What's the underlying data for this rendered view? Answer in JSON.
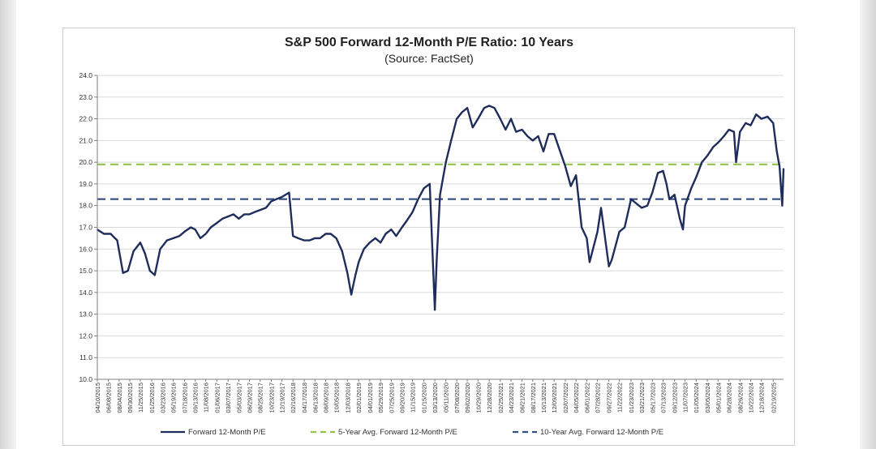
{
  "chart_data": {
    "type": "line",
    "title": "S&P 500 Forward 12-Month P/E Ratio: 10 Years",
    "subtitle": "(Source: FactSet)",
    "xlabel": "",
    "ylabel": "",
    "ylim": [
      10.0,
      24.0
    ],
    "y_ticks": [
      "10.0",
      "11.0",
      "12.0",
      "13.0",
      "14.0",
      "15.0",
      "16.0",
      "17.0",
      "18.0",
      "19.0",
      "20.0",
      "21.0",
      "22.0",
      "23.0",
      "24.0"
    ],
    "x_ticks": [
      "04/10/2015",
      "06/08/2015",
      "08/04/2015",
      "09/30/2015",
      "11/25/2015",
      "01/25/2016",
      "03/23/2016",
      "05/19/2016",
      "07/18/2016",
      "09/13/2016",
      "11/08/2016",
      "01/06/2017",
      "03/07/2017",
      "05/03/2017",
      "06/29/2017",
      "08/25/2017",
      "10/23/2017",
      "12/19/2017",
      "02/16/2018",
      "04/17/2018",
      "06/13/2018",
      "08/09/2018",
      "10/05/2018",
      "12/03/2018",
      "02/01/2019",
      "04/01/2019",
      "05/29/2019",
      "07/25/2019",
      "09/20/2019",
      "11/15/2019",
      "01/15/2020",
      "03/13/2020",
      "05/11/2020",
      "07/08/2020",
      "09/02/2020",
      "10/29/2020",
      "12/28/2020",
      "02/25/2021",
      "04/23/2021",
      "06/21/2021",
      "08/17/2021",
      "10/13/2021",
      "12/09/2021",
      "02/07/2022",
      "04/05/2022",
      "06/01/2022",
      "07/28/2022",
      "09/27/2022",
      "11/22/2022",
      "01/23/2023",
      "03/21/2023",
      "05/17/2023",
      "07/13/2023",
      "09/12/2023",
      "11/07/2023",
      "01/05/2024",
      "03/05/2024",
      "05/01/2024",
      "06/28/2024",
      "08/26/2024",
      "10/22/2024",
      "12/18/2024",
      "02/19/2025"
    ],
    "grid": true,
    "legend_position": "bottom",
    "series": [
      {
        "name": "Forward 12-Month P/E",
        "style": "solid",
        "color": "#1f2d5c",
        "x": [
          "04/10/2015",
          "05/15/2015",
          "06/20/2015",
          "07/25/2015",
          "08/25/2015",
          "09/20/2015",
          "10/20/2015",
          "11/25/2015",
          "12/20/2015",
          "01/15/2016",
          "02/10/2016",
          "03/10/2016",
          "04/15/2016",
          "05/19/2016",
          "06/20/2016",
          "07/18/2016",
          "08/20/2016",
          "09/13/2016",
          "10/10/2016",
          "11/08/2016",
          "12/05/2016",
          "01/06/2017",
          "02/05/2017",
          "03/07/2017",
          "04/05/2017",
          "05/03/2017",
          "06/01/2017",
          "06/29/2017",
          "07/25/2017",
          "08/25/2017",
          "09/25/2017",
          "10/23/2017",
          "11/20/2017",
          "12/19/2017",
          "01/26/2018",
          "02/16/2018",
          "03/15/2018",
          "04/17/2018",
          "05/15/2018",
          "06/13/2018",
          "07/10/2018",
          "08/09/2018",
          "09/05/2018",
          "10/05/2018",
          "11/05/2018",
          "12/03/2018",
          "12/24/2018",
          "01/15/2019",
          "02/01/2019",
          "03/01/2019",
          "04/01/2019",
          "05/01/2019",
          "05/29/2019",
          "06/25/2019",
          "07/25/2019",
          "08/20/2019",
          "09/20/2019",
          "10/15/2019",
          "11/15/2019",
          "12/15/2019",
          "01/15/2020",
          "02/15/2020",
          "03/13/2020",
          "03/23/2020",
          "04/10/2020",
          "05/11/2020",
          "06/08/2020",
          "07/08/2020",
          "08/05/2020",
          "09/02/2020",
          "10/01/2020",
          "10/29/2020",
          "12/01/2020",
          "12/28/2020",
          "01/25/2021",
          "02/25/2021",
          "03/25/2021",
          "04/23/2021",
          "05/20/2021",
          "06/21/2021",
          "07/20/2021",
          "08/17/2021",
          "09/15/2021",
          "10/13/2021",
          "11/10/2021",
          "12/09/2021",
          "01/10/2022",
          "02/07/2022",
          "03/08/2022",
          "04/05/2022",
          "05/05/2022",
          "06/01/2022",
          "06/16/2022",
          "07/28/2022",
          "08/16/2022",
          "09/27/2022",
          "10/12/2022",
          "11/22/2022",
          "12/20/2022",
          "01/23/2023",
          "02/20/2023",
          "03/21/2023",
          "04/20/2023",
          "05/17/2023",
          "06/15/2023",
          "07/13/2023",
          "07/31/2023",
          "08/15/2023",
          "09/12/2023",
          "10/10/2023",
          "10/27/2023",
          "11/07/2023",
          "12/10/2023",
          "01/05/2024",
          "02/05/2024",
          "03/05/2024",
          "04/05/2024",
          "05/01/2024",
          "06/01/2024",
          "06/28/2024",
          "07/25/2024",
          "08/05/2024",
          "08/26/2024",
          "09/25/2024",
          "10/22/2024",
          "11/20/2024",
          "12/18/2024",
          "01/20/2025",
          "02/19/2025",
          "03/10/2025",
          "03/25/2025",
          "04/08/2025",
          "04/15/2025"
        ],
        "values": [
          16.9,
          16.7,
          16.7,
          16.4,
          14.9,
          15.0,
          15.9,
          16.3,
          15.8,
          15.0,
          14.8,
          16.0,
          16.4,
          16.5,
          16.6,
          16.8,
          17.0,
          16.9,
          16.5,
          16.7,
          17.0,
          17.2,
          17.4,
          17.5,
          17.6,
          17.4,
          17.6,
          17.6,
          17.7,
          17.8,
          17.9,
          18.2,
          18.3,
          18.4,
          18.6,
          16.6,
          16.5,
          16.4,
          16.4,
          16.5,
          16.5,
          16.7,
          16.7,
          16.5,
          15.9,
          14.9,
          13.9,
          14.8,
          15.4,
          16.0,
          16.3,
          16.5,
          16.3,
          16.7,
          16.9,
          16.6,
          17.0,
          17.3,
          17.7,
          18.3,
          18.8,
          19.0,
          13.2,
          15.5,
          18.5,
          20.0,
          21.0,
          22.0,
          22.3,
          22.5,
          21.6,
          22.0,
          22.5,
          22.6,
          22.5,
          22.0,
          21.5,
          22.0,
          21.4,
          21.5,
          21.2,
          21.0,
          21.2,
          20.5,
          21.3,
          21.3,
          20.5,
          19.8,
          18.9,
          19.4,
          17.0,
          16.5,
          15.4,
          16.8,
          17.9,
          15.2,
          15.5,
          16.8,
          17.0,
          18.3,
          18.1,
          17.9,
          18.0,
          18.6,
          19.5,
          19.6,
          19.0,
          18.3,
          18.5,
          17.4,
          16.9,
          18.0,
          18.8,
          19.3,
          20.0,
          20.3,
          20.7,
          20.9,
          21.2,
          21.5,
          21.4,
          20.0,
          21.4,
          21.8,
          21.7,
          22.2,
          22.0,
          22.1,
          21.8,
          20.5,
          19.8,
          18.0,
          19.7
        ]
      },
      {
        "name": "5-Year Avg. Forward 12-Month P/E",
        "style": "dashed",
        "color": "#92c34a",
        "value": 19.9
      },
      {
        "name": "10-Year Avg. Forward 12-Month P/E",
        "style": "dashed",
        "color": "#344f7e",
        "value": 18.3
      }
    ]
  }
}
